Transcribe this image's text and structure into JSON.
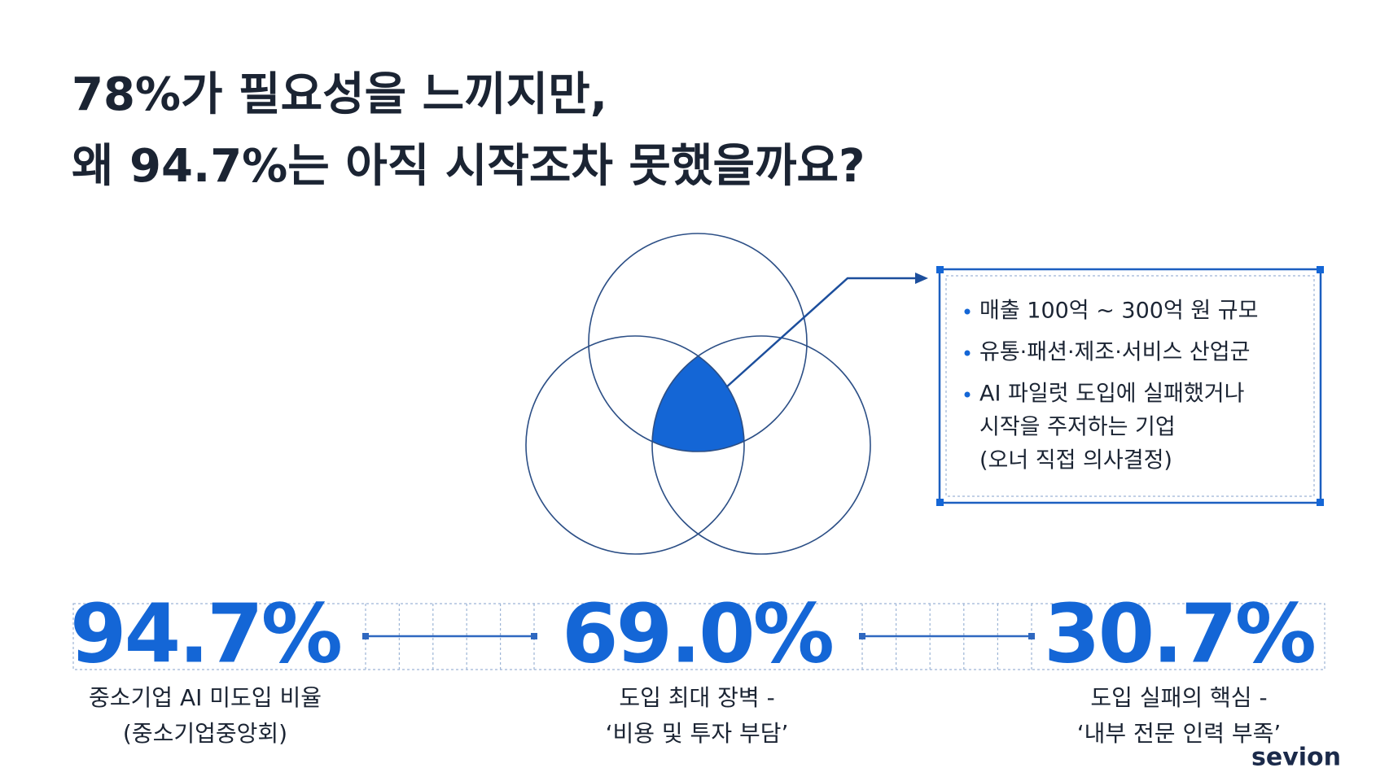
{
  "title": [
    "78%가 필요성을 느끼지만,",
    "왜 94.7%는 아직 시작조차 못했을까요?"
  ],
  "callout": {
    "items": [
      [
        "매출 100억 ~ 300억 원 규모"
      ],
      [
        "유통·패션·제조·서비스 산업군"
      ],
      [
        "AI 파일럿 도입에 실패했거나",
        "시작을 주저하는 기업",
        "(오너 직접 의사결정)"
      ]
    ]
  },
  "stats": [
    {
      "value": "94.7%",
      "label": [
        "중소기업 AI 미도입 비율",
        "(중소기업중앙회)"
      ]
    },
    {
      "value": "69.0%",
      "label": [
        "도입 최대 장벽 -",
        "‘비용 및 투자 부담’"
      ]
    },
    {
      "value": "30.7%",
      "label": [
        "도입 실패의 핵심 -",
        "‘내부 전문 인력 부족’"
      ]
    }
  ],
  "logo": "sevion"
}
